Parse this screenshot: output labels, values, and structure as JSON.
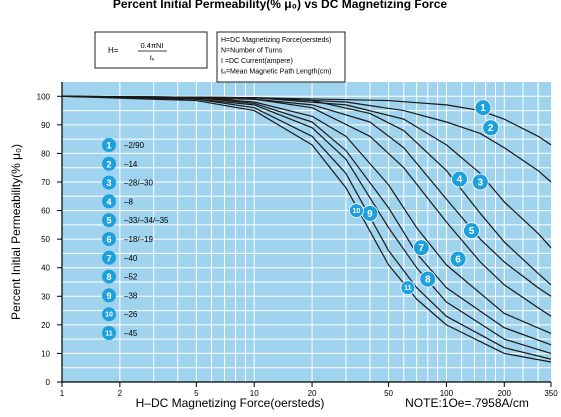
{
  "chart_data": {
    "type": "line",
    "title": "Percent Initial Permeability(% μ₀) vs DC Magnetizing Force",
    "xlabel": "H–DC Magnetizing Force(oersteds)",
    "xnote": "NOTE:1Oe=.7958A/cm",
    "ylabel": "Percent Initial Permeability(% μ₀)",
    "xscale": "log",
    "xlim": [
      1,
      350
    ],
    "ylim": [
      0,
      105
    ],
    "x_ticks": [
      1,
      2,
      5,
      10,
      20,
      50,
      100,
      200,
      350
    ],
    "x_ticklabels": [
      "1",
      "2",
      "5",
      "10",
      "20",
      "50",
      "100",
      "200",
      "350"
    ],
    "y_ticks": [
      0,
      10,
      20,
      30,
      40,
      50,
      60,
      70,
      80,
      90,
      100
    ],
    "y_ticklabels": [
      "0",
      "10",
      "20",
      "30",
      "40",
      "50",
      "60",
      "70",
      "80",
      "90",
      "100"
    ],
    "grid": true,
    "colors": {
      "plot_bg": "#9fd3ee",
      "grid": "#ffffff",
      "curve": "#1a1a1a",
      "marker": "#1ea0dc",
      "marker_text": "#ffffff"
    },
    "formula": {
      "lhs": "H=",
      "numerator": "0.4πNI",
      "denominator": "ℓₑ"
    },
    "definitions": [
      "H=DC Magnetizing Force(oersteds)",
      "N=Number of Turns",
      "I =DC Current(ampere)",
      "ℓₑ=Mean Magnetic Path Length(cm)"
    ],
    "legend": [
      {
        "id": "1",
        "label": "–2/90"
      },
      {
        "id": "2",
        "label": "–14"
      },
      {
        "id": "3",
        "label": "–28/–30"
      },
      {
        "id": "4",
        "label": "–8"
      },
      {
        "id": "5",
        "label": "–33/–34/–35"
      },
      {
        "id": "6",
        "label": "–18/–19"
      },
      {
        "id": "7",
        "label": "–40"
      },
      {
        "id": "8",
        "label": "–52"
      },
      {
        "id": "9",
        "label": "–38"
      },
      {
        "id": "10",
        "label": "–26"
      },
      {
        "id": "11",
        "label": "–45"
      }
    ],
    "series": [
      {
        "name": "1",
        "label_point": [
          155,
          96
        ],
        "x": [
          1,
          10,
          50,
          100,
          150,
          200,
          300,
          350
        ],
        "y": [
          100,
          99.5,
          98.5,
          97,
          95,
          92,
          86,
          83
        ]
      },
      {
        "name": "2",
        "label_point": [
          170,
          89
        ],
        "x": [
          1,
          10,
          30,
          60,
          100,
          150,
          200,
          300,
          350
        ],
        "y": [
          100,
          99.5,
          98,
          95,
          91,
          87,
          82,
          74,
          70
        ]
      },
      {
        "name": "4",
        "label_point": [
          117,
          71
        ],
        "x": [
          1,
          10,
          20,
          40,
          60,
          100,
          150,
          200,
          300,
          350
        ],
        "y": [
          100,
          99.5,
          98.5,
          94,
          88,
          74,
          59,
          49,
          38,
          34
        ]
      },
      {
        "name": "3",
        "label_point": [
          150,
          70
        ],
        "x": [
          1,
          10,
          30,
          60,
          100,
          150,
          200,
          300,
          350
        ],
        "y": [
          100,
          99.5,
          97,
          92,
          83,
          73,
          63,
          52,
          47
        ]
      },
      {
        "name": "5",
        "label_point": [
          135,
          53
        ],
        "x": [
          1,
          10,
          20,
          40,
          60,
          100,
          150,
          200,
          300,
          350
        ],
        "y": [
          100,
          99,
          97,
          91,
          82,
          64,
          50,
          42,
          33,
          30
        ]
      },
      {
        "name": "6",
        "label_point": [
          115,
          43
        ],
        "x": [
          1,
          10,
          20,
          40,
          60,
          100,
          150,
          200,
          300,
          350
        ],
        "y": [
          100,
          99,
          96,
          86,
          75,
          56,
          42,
          34,
          26,
          23
        ]
      },
      {
        "name": "7",
        "label_point": [
          74,
          47
        ],
        "x": [
          1,
          5,
          10,
          20,
          30,
          50,
          70,
          100,
          200,
          350
        ],
        "y": [
          100,
          99.5,
          98,
          93,
          86,
          69,
          54,
          41,
          24,
          17
        ]
      },
      {
        "name": "8",
        "label_point": [
          80,
          36
        ],
        "x": [
          1,
          5,
          10,
          20,
          30,
          50,
          70,
          100,
          200,
          350
        ],
        "y": [
          100,
          99.5,
          97.5,
          91,
          81,
          61,
          45,
          33,
          19,
          13
        ]
      },
      {
        "name": "9",
        "label_point": [
          40,
          59
        ],
        "x": [
          1,
          5,
          10,
          20,
          30,
          50,
          70,
          100,
          200,
          350
        ],
        "y": [
          100,
          99,
          97,
          89,
          78,
          54,
          40,
          28,
          15,
          10
        ]
      },
      {
        "name": "10",
        "label_point": [
          34,
          60
        ],
        "x": [
          1,
          5,
          10,
          20,
          30,
          50,
          70,
          100,
          200,
          350
        ],
        "y": [
          100,
          99,
          96,
          86,
          73,
          46,
          33,
          23,
          12,
          8
        ]
      },
      {
        "name": "11",
        "label_point": [
          63,
          33
        ],
        "x": [
          1,
          5,
          10,
          20,
          30,
          50,
          70,
          100,
          200,
          350
        ],
        "y": [
          100,
          98.5,
          95,
          83,
          68,
          41,
          29,
          20,
          10,
          7
        ]
      }
    ]
  }
}
